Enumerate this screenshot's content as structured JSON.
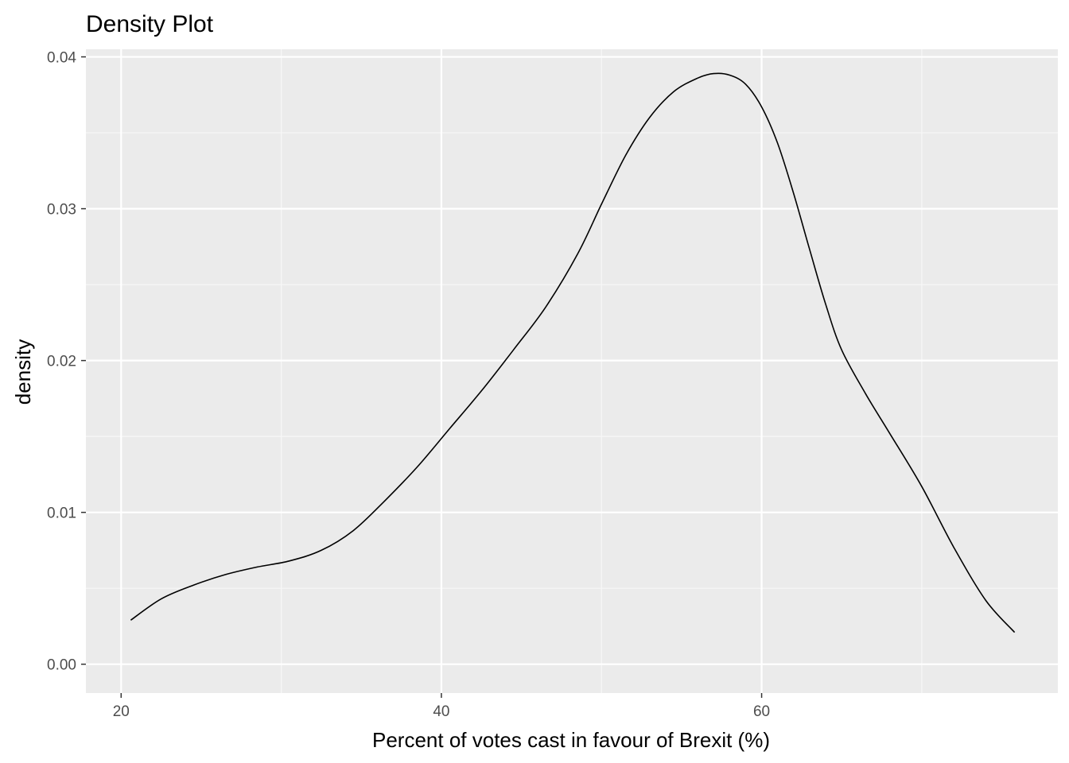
{
  "chart_data": {
    "type": "line",
    "title": "Density Plot",
    "xlabel": "Percent of votes cast in favour of Brexit (%)",
    "ylabel": "density",
    "xlim": [
      17.8,
      78.5
    ],
    "ylim": [
      -0.0019,
      0.0405
    ],
    "x_ticks": [
      20,
      40,
      60
    ],
    "x_tick_labels": [
      "20",
      "40",
      "60"
    ],
    "x_minor_ticks": [
      30,
      50,
      70
    ],
    "y_ticks": [
      0.0,
      0.01,
      0.02,
      0.03,
      0.04
    ],
    "y_tick_labels": [
      "0.00",
      "0.01",
      "0.02",
      "0.03",
      "0.04"
    ],
    "y_minor_ticks": [
      0.005,
      0.015,
      0.025,
      0.035
    ],
    "grid": true,
    "legend": "none",
    "colors": {
      "panel_background": "#ebebeb",
      "grid_major": "#ffffff",
      "grid_minor": "#f7f7f7",
      "line": "#000000",
      "tick_text": "#4d4d4d",
      "tick_mark": "#333333"
    },
    "series": [
      {
        "x": [
          20.6,
          22.5,
          24.5,
          26.5,
          28.5,
          30.5,
          32.5,
          34.5,
          36.5,
          38.5,
          40.5,
          42.5,
          44.5,
          46.5,
          48.5,
          50.0,
          51.5,
          53.0,
          54.5,
          56.0,
          57.0,
          58.0,
          59.0,
          60.0,
          61.0,
          62.0,
          63.0,
          64.0,
          65.0,
          66.5,
          68.0,
          70.0,
          72.0,
          74.0,
          75.8
        ],
        "y": [
          0.0029,
          0.0043,
          0.0052,
          0.0059,
          0.0064,
          0.0068,
          0.0075,
          0.0088,
          0.0108,
          0.013,
          0.0155,
          0.018,
          0.0207,
          0.0235,
          0.027,
          0.0303,
          0.0335,
          0.036,
          0.0377,
          0.0386,
          0.0389,
          0.0388,
          0.0382,
          0.0367,
          0.0343,
          0.031,
          0.0273,
          0.0237,
          0.0207,
          0.0178,
          0.0152,
          0.0117,
          0.0077,
          0.0042,
          0.0021
        ]
      }
    ]
  }
}
